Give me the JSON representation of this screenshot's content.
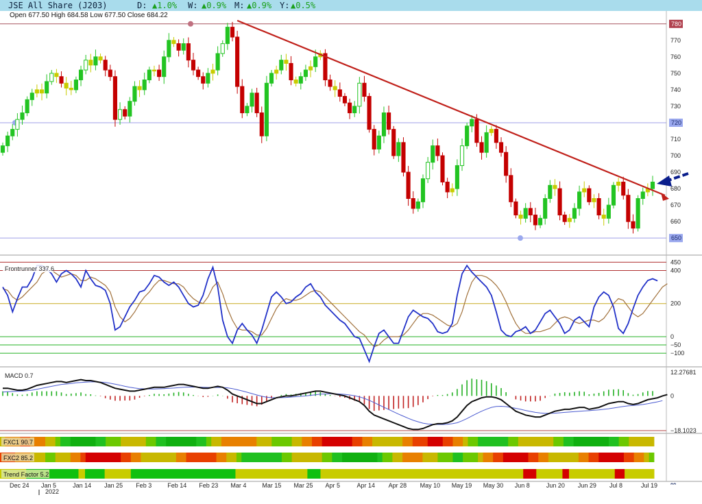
{
  "header": {
    "instrument": "JSE All Share (J203)",
    "daily_label": "D:",
    "daily_change": "▲1.0%",
    "weekly_label": "W:",
    "weekly_change": "▲0.9%",
    "monthly_label": "M:",
    "monthly_change": "▲0.9%",
    "yearly_label": "Y:",
    "yearly_change": "▲0.5%"
  },
  "ohlc": {
    "text": "Open 677.50  High 684.58  Low 677.50  Close 684.22"
  },
  "colors": {
    "candle_up": "#22c422",
    "candle_down": "#c40000",
    "candle_neutral": "#c8cc00",
    "trendline": "#c0201a",
    "arrow": "#0a1e8c",
    "fast_line": "#2030c8",
    "slow_line": "#a0703a",
    "macd_line": "#111111",
    "signal_line": "#4a5ad0"
  },
  "chart_data": [
    {
      "type": "candlestick",
      "title": "JSE All Share (J203)",
      "ylim": [
        643,
        782
      ],
      "y_ticks": [
        660,
        670,
        680,
        690,
        700,
        710,
        730,
        740,
        750,
        760,
        770
      ],
      "price_marker_labels": [
        "780",
        "720",
        "650"
      ],
      "horizontal_lines": [
        780,
        720,
        650
      ],
      "trendline": {
        "from": {
          "date": "Mar 4",
          "value": 782
        },
        "to": {
          "date": "Jul 19",
          "value": 679
        }
      },
      "x_ticks": [
        "Dec 24",
        "Jan 5",
        "Jan 14",
        "Jan 25",
        "Feb 3",
        "Feb 14",
        "Feb 23",
        "Mar 4",
        "Mar 15",
        "Mar 25",
        "Apr 5",
        "Apr 14",
        "Apr 28",
        "May 10",
        "May 19",
        "May 30",
        "Jun 8",
        "Jun 20",
        "Jun 29",
        "Jul 8",
        "Jul 19"
      ],
      "year_label": "2022",
      "last_candle": {
        "open": 677.5,
        "high": 684.58,
        "low": 677.5,
        "close": 684.22
      },
      "close_series": [
        706,
        712,
        716,
        722,
        726,
        734,
        738,
        740,
        738,
        745,
        750,
        748,
        744,
        741,
        740,
        746,
        752,
        758,
        755,
        760,
        758,
        752,
        748,
        722,
        728,
        724,
        733,
        742,
        740,
        746,
        752,
        752,
        748,
        760,
        770,
        768,
        764,
        768,
        758,
        752,
        748,
        744,
        750,
        752,
        762,
        768,
        778,
        772,
        742,
        726,
        730,
        738,
        726,
        712,
        744,
        750,
        752,
        758,
        756,
        746,
        744,
        748,
        752,
        754,
        760,
        762,
        746,
        742,
        740,
        736,
        732,
        726,
        730,
        744,
        736,
        716,
        704,
        712,
        726,
        716,
        700,
        708,
        690,
        674,
        668,
        672,
        686,
        696,
        706,
        700,
        684,
        678,
        680,
        694,
        706,
        718,
        722,
        708,
        702,
        714,
        716,
        708,
        702,
        688,
        672,
        664,
        662,
        668,
        664,
        658,
        662,
        674,
        682,
        680,
        664,
        660,
        662,
        668,
        678,
        680,
        672,
        674,
        664,
        662,
        670,
        682,
        684,
        676,
        660,
        656,
        674,
        678,
        680,
        684
      ]
    },
    {
      "type": "line",
      "title": "Frontrunner",
      "value_label": "337.6",
      "ylim": [
        -170,
        460
      ],
      "y_ticks": [
        450,
        400,
        200,
        0,
        -50,
        -100
      ],
      "levels": [
        450,
        400,
        200,
        0,
        -50,
        -100
      ],
      "series": [
        {
          "values": [
            300,
            250,
            150,
            230,
            300,
            300,
            350,
            430,
            430,
            410,
            380,
            330,
            380,
            400,
            380,
            350,
            300,
            400,
            350,
            310,
            300,
            280,
            200,
            40,
            60,
            120,
            180,
            220,
            270,
            280,
            320,
            370,
            360,
            330,
            310,
            330,
            300,
            250,
            200,
            180,
            190,
            250,
            350,
            420,
            300,
            100,
            0,
            -40,
            40,
            80,
            40,
            10,
            -40,
            40,
            140,
            240,
            270,
            240,
            200,
            210,
            240,
            260,
            300,
            320,
            270,
            240,
            190,
            160,
            130,
            100,
            80,
            40,
            0,
            -10,
            -80,
            -150,
            -60,
            20,
            40,
            0,
            -40,
            -40,
            40,
            120,
            160,
            140,
            120,
            110,
            80,
            30,
            20,
            30,
            80,
            250,
            380,
            430,
            390,
            360,
            330,
            300,
            250,
            150,
            40,
            10,
            0,
            30,
            40,
            60,
            20,
            40,
            90,
            140,
            160,
            120,
            80,
            20,
            40,
            100,
            120,
            90,
            60,
            180,
            240,
            270,
            250,
            180,
            50,
            20,
            80,
            170,
            250,
            300,
            340,
            350,
            337.6
          ]
        },
        {
          "values": [
            290,
            280,
            240,
            220,
            240,
            270,
            300,
            330,
            380,
            400,
            400,
            380,
            360,
            370,
            380,
            370,
            340,
            340,
            360,
            350,
            330,
            310,
            270,
            180,
            120,
            90,
            110,
            150,
            200,
            240,
            270,
            310,
            340,
            340,
            330,
            320,
            320,
            300,
            260,
            230,
            210,
            200,
            240,
            300,
            330,
            260,
            170,
            100,
            50,
            40,
            40,
            30,
            10,
            10,
            50,
            110,
            170,
            210,
            230,
            220,
            220,
            230,
            250,
            270,
            280,
            270,
            240,
            210,
            180,
            150,
            120,
            90,
            60,
            30,
            10,
            -30,
            -60,
            -50,
            -20,
            0,
            0,
            0,
            10,
            40,
            80,
            120,
            140,
            140,
            130,
            110,
            90,
            70,
            60,
            80,
            150,
            250,
            330,
            370,
            370,
            360,
            340,
            310,
            270,
            210,
            140,
            80,
            40,
            20,
            20,
            30,
            30,
            40,
            50,
            80,
            110,
            120,
            110,
            90,
            80,
            90,
            100,
            100,
            90,
            110,
            150,
            200,
            230,
            220,
            180,
            140,
            120,
            140,
            180,
            220,
            260,
            300,
            320
          ]
        }
      ]
    },
    {
      "type": "line",
      "title": "MACD",
      "value_label": "0.7",
      "ylim": [
        -18.1023,
        12.27681
      ],
      "y_ticks": [
        12.27681,
        0,
        -18.1023
      ],
      "series": [
        {
          "values": [
            4,
            4,
            3.5,
            3,
            3,
            3.5,
            4.5,
            5.5,
            6,
            6.5,
            7,
            7.5,
            7.5,
            7,
            7.5,
            8,
            8.5,
            8,
            8,
            7.5,
            7,
            6,
            5,
            4,
            3.5,
            3,
            2.5,
            2.5,
            3,
            3.5,
            4,
            4.5,
            4.5,
            4.5,
            5,
            5.5,
            6,
            6,
            5.5,
            5,
            4.5,
            4,
            4,
            4.5,
            5,
            4.5,
            3,
            1,
            0,
            -1,
            -2,
            -3,
            -4,
            -4,
            -3,
            -2,
            -1,
            -0.5,
            0,
            0,
            0.5,
            1,
            1.5,
            2,
            2.5,
            2.5,
            2,
            1.5,
            1,
            0.5,
            0,
            -1,
            -2,
            -3,
            -5,
            -8,
            -10,
            -11,
            -12,
            -13,
            -14,
            -15,
            -16,
            -17,
            -17.5,
            -17.5,
            -17,
            -16,
            -15,
            -14.5,
            -14.5,
            -14,
            -13,
            -11,
            -8,
            -5,
            -3,
            -2,
            -1,
            -0.5,
            -0.5,
            -1,
            -2,
            -4,
            -6,
            -8,
            -9,
            -10,
            -10.5,
            -11,
            -11,
            -10,
            -9,
            -8,
            -7.5,
            -7,
            -7,
            -6.5,
            -6,
            -6,
            -7,
            -6.5,
            -6,
            -5,
            -4,
            -3.5,
            -3,
            -3,
            -4,
            -4.5,
            -4,
            -3,
            -2,
            -1.5,
            -1,
            0,
            0.7
          ]
        },
        {
          "values": [
            2,
            2.2,
            2.3,
            2.4,
            2.5,
            2.7,
            3,
            3.5,
            4,
            4.5,
            5,
            5.5,
            6,
            6.2,
            6.5,
            6.8,
            7,
            7.2,
            7.3,
            7.3,
            7.2,
            7,
            6.6,
            6.1,
            5.6,
            5,
            4.5,
            4.1,
            3.8,
            3.7,
            3.6,
            3.6,
            3.7,
            3.8,
            4,
            4.1,
            4.3,
            4.5,
            4.6,
            4.6,
            4.6,
            4.5,
            4.4,
            4.4,
            4.4,
            4.4,
            4.2,
            3.8,
            3.2,
            2.6,
            1.9,
            1.2,
            0.5,
            -0.2,
            -0.7,
            -0.9,
            -1,
            -0.9,
            -0.8,
            -0.6,
            -0.4,
            -0.2,
            0,
            0.3,
            0.6,
            0.9,
            1,
            1.1,
            1.1,
            1,
            0.8,
            0.5,
            0.1,
            -0.5,
            -1.3,
            -2.3,
            -3.5,
            -4.7,
            -5.9,
            -7.1,
            -8.3,
            -9.5,
            -10.6,
            -11.7,
            -12.7,
            -13.5,
            -14.2,
            -14.6,
            -14.8,
            -14.9,
            -14.9,
            -14.8,
            -14.5,
            -14,
            -13,
            -11.8,
            -10.5,
            -9.2,
            -8,
            -6.9,
            -6,
            -5.5,
            -5.4,
            -5.6,
            -6,
            -6.5,
            -7,
            -7.6,
            -8.1,
            -8.6,
            -8.9,
            -9.1,
            -9.1,
            -9,
            -8.8,
            -8.6,
            -8.4,
            -8.2,
            -8,
            -7.8,
            -7.7,
            -7.5,
            -7.3,
            -7,
            -6.7,
            -6.3,
            -5.9,
            -5.5,
            -5.2,
            -5,
            -4.8,
            -4.5,
            -4.1,
            -3.6,
            -3.1,
            -2.5
          ]
        }
      ]
    },
    {
      "type": "heatmap",
      "title": "FXC1",
      "value_label": "90.7"
    },
    {
      "type": "heatmap",
      "title": "FXC2",
      "value_label": "85.2"
    },
    {
      "type": "heatmap",
      "title": "Trend Factor",
      "value_label": "5.2"
    }
  ]
}
